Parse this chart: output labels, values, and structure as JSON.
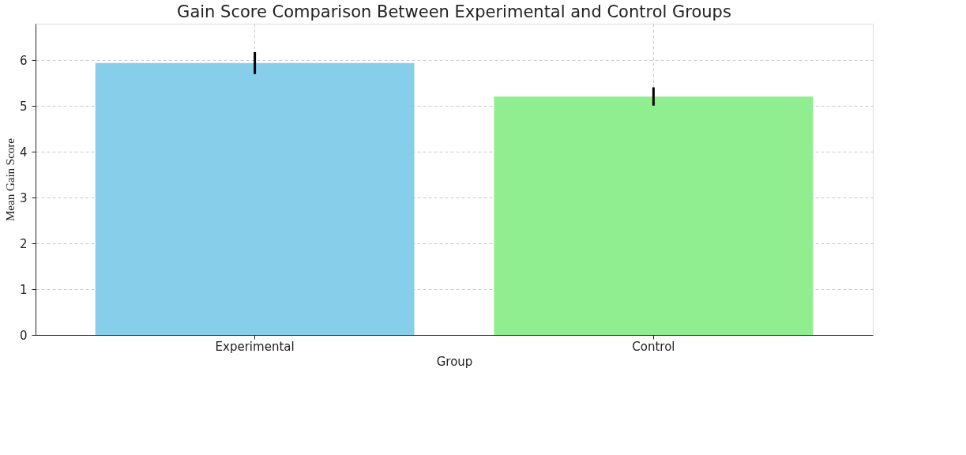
{
  "chart_data": {
    "type": "bar",
    "title": "Gain Score Comparison Between Experimental and Control Groups",
    "xlabel": "Group",
    "ylabel": "Mean Gain Score",
    "categories": [
      "Experimental",
      "Control"
    ],
    "values": [
      5.94,
      5.21
    ],
    "colors": [
      "#87ceeb",
      "#90ee90"
    ],
    "errors": [
      0.24,
      0.2
    ],
    "ylim": [
      0,
      6.8
    ],
    "yticks": [
      0,
      1,
      2,
      3,
      4,
      5,
      6
    ],
    "grid": true
  }
}
